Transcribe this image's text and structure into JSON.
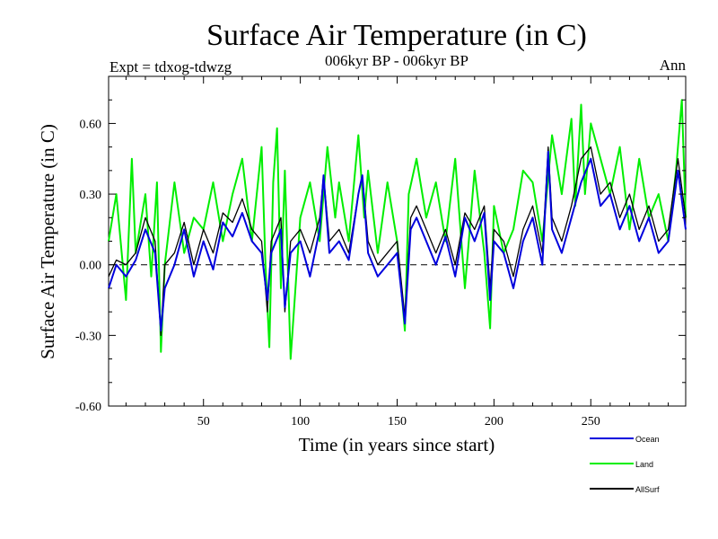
{
  "chart_data": {
    "type": "line",
    "title": "Surface Air Temperature (in C)",
    "subtitle": "006kyr BP - 006kyr BP",
    "left_label": "Expt = tdxog-tdwzg",
    "right_label": "Ann",
    "xlabel": "Time (in years since start)",
    "ylabel": "Surface Air Temperature (in C)",
    "xlim": [
      1,
      299
    ],
    "ylim": [
      -0.6,
      0.8
    ],
    "x_ticks": [
      50,
      100,
      150,
      200,
      250
    ],
    "x_tick_labels": [
      "50",
      "100",
      "150",
      "200",
      "250"
    ],
    "y_ticks": [
      -0.6,
      -0.3,
      0.0,
      0.3,
      0.6
    ],
    "y_tick_labels": [
      "-0.60",
      "-0.30",
      "0.00",
      "0.30",
      "0.60"
    ],
    "reference_line": 0.0,
    "legend_position": "bottom-right",
    "series": [
      {
        "name": "Ocean",
        "color": "#0000dd",
        "x": [
          1,
          5,
          10,
          15,
          20,
          25,
          28,
          30,
          35,
          40,
          45,
          50,
          55,
          60,
          65,
          70,
          75,
          80,
          83,
          85,
          90,
          92,
          95,
          100,
          105,
          110,
          112,
          115,
          120,
          125,
          130,
          132,
          135,
          140,
          145,
          150,
          154,
          157,
          160,
          165,
          170,
          175,
          180,
          185,
          190,
          195,
          198,
          200,
          205,
          210,
          215,
          220,
          225,
          228,
          230,
          235,
          240,
          245,
          250,
          255,
          260,
          265,
          270,
          275,
          280,
          285,
          290,
          295,
          299
        ],
        "values": [
          -0.1,
          0.0,
          -0.05,
          0.02,
          0.15,
          0.05,
          -0.28,
          -0.1,
          0.0,
          0.15,
          -0.05,
          0.1,
          -0.02,
          0.18,
          0.12,
          0.22,
          0.1,
          0.05,
          -0.15,
          0.05,
          0.15,
          -0.18,
          0.05,
          0.1,
          -0.05,
          0.15,
          0.38,
          0.05,
          0.1,
          0.02,
          0.3,
          0.38,
          0.05,
          -0.05,
          0.0,
          0.05,
          -0.25,
          0.15,
          0.2,
          0.1,
          0.0,
          0.12,
          -0.05,
          0.2,
          0.1,
          0.22,
          -0.15,
          0.1,
          0.05,
          -0.1,
          0.1,
          0.2,
          0.0,
          0.48,
          0.15,
          0.05,
          0.2,
          0.35,
          0.45,
          0.25,
          0.3,
          0.15,
          0.25,
          0.1,
          0.2,
          0.05,
          0.1,
          0.4,
          0.15
        ]
      },
      {
        "name": "Land",
        "color": "#00ee00",
        "x": [
          1,
          5,
          10,
          13,
          15,
          20,
          23,
          26,
          28,
          30,
          35,
          40,
          45,
          50,
          55,
          60,
          65,
          70,
          75,
          80,
          82,
          84,
          86,
          88,
          90,
          92,
          95,
          100,
          105,
          110,
          114,
          118,
          120,
          125,
          130,
          133,
          135,
          140,
          145,
          150,
          154,
          156,
          160,
          165,
          170,
          175,
          180,
          185,
          190,
          195,
          198,
          200,
          205,
          210,
          215,
          220,
          225,
          230,
          235,
          240,
          242,
          245,
          247,
          250,
          255,
          260,
          265,
          270,
          275,
          280,
          285,
          290,
          294,
          297,
          299
        ],
        "values": [
          0.1,
          0.3,
          -0.15,
          0.45,
          0.05,
          0.3,
          -0.05,
          0.35,
          -0.37,
          0.0,
          0.35,
          0.05,
          0.2,
          0.15,
          0.35,
          0.1,
          0.3,
          0.45,
          0.1,
          0.5,
          0.0,
          -0.35,
          0.35,
          0.58,
          -0.1,
          0.4,
          -0.4,
          0.2,
          0.35,
          0.1,
          0.5,
          0.2,
          0.35,
          0.1,
          0.55,
          0.2,
          0.4,
          0.05,
          0.35,
          0.1,
          -0.28,
          0.3,
          0.45,
          0.2,
          0.35,
          0.1,
          0.45,
          -0.1,
          0.4,
          0.05,
          -0.27,
          0.25,
          0.05,
          0.15,
          0.4,
          0.35,
          0.1,
          0.55,
          0.3,
          0.62,
          0.25,
          0.68,
          0.3,
          0.6,
          0.45,
          0.3,
          0.5,
          0.15,
          0.45,
          0.2,
          0.3,
          0.1,
          0.4,
          0.7,
          0.2
        ]
      },
      {
        "name": "AllSurf",
        "color": "#000000",
        "x": [
          1,
          5,
          10,
          15,
          20,
          25,
          28,
          30,
          35,
          40,
          45,
          50,
          55,
          60,
          65,
          70,
          75,
          80,
          83,
          85,
          90,
          92,
          95,
          100,
          105,
          110,
          112,
          115,
          120,
          125,
          130,
          132,
          135,
          140,
          145,
          150,
          154,
          157,
          160,
          165,
          170,
          175,
          180,
          185,
          190,
          195,
          198,
          200,
          205,
          210,
          215,
          220,
          225,
          228,
          230,
          235,
          240,
          245,
          250,
          255,
          260,
          265,
          270,
          275,
          280,
          285,
          290,
          295,
          299
        ],
        "values": [
          -0.05,
          0.02,
          0.0,
          0.05,
          0.2,
          0.1,
          -0.3,
          0.0,
          0.05,
          0.18,
          0.0,
          0.15,
          0.05,
          0.22,
          0.18,
          0.28,
          0.15,
          0.1,
          -0.2,
          0.1,
          0.2,
          -0.2,
          0.1,
          0.15,
          0.05,
          0.2,
          0.38,
          0.1,
          0.15,
          0.05,
          0.3,
          0.38,
          0.1,
          0.0,
          0.05,
          0.1,
          -0.22,
          0.2,
          0.25,
          0.15,
          0.05,
          0.15,
          0.0,
          0.22,
          0.15,
          0.25,
          -0.1,
          0.15,
          0.1,
          -0.05,
          0.15,
          0.25,
          0.05,
          0.5,
          0.2,
          0.1,
          0.25,
          0.45,
          0.5,
          0.3,
          0.35,
          0.2,
          0.3,
          0.15,
          0.25,
          0.1,
          0.15,
          0.45,
          0.2
        ]
      }
    ]
  }
}
